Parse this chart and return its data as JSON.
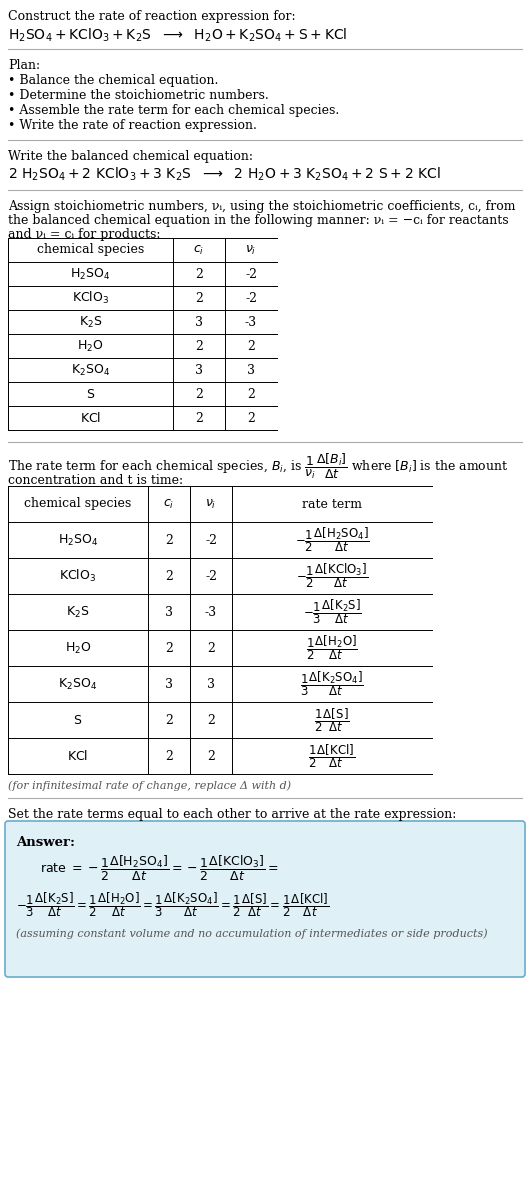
{
  "title_line1": "Construct the rate of reaction expression for:",
  "plan_header": "Plan:",
  "plan_items": [
    "• Balance the chemical equation.",
    "• Determine the stoichiometric numbers.",
    "• Assemble the rate term for each chemical species.",
    "• Write the rate of reaction expression."
  ],
  "balanced_header": "Write the balanced chemical equation:",
  "assign_text1": "Assign stoichiometric numbers, νᵢ, using the stoichiometric coefficients, cᵢ, from",
  "assign_text2": "the balanced chemical equation in the following manner: νᵢ = −cᵢ for reactants",
  "assign_text3": "and νᵢ = cᵢ for products:",
  "table1_data": [
    [
      "H_2SO_4",
      "2",
      "-2"
    ],
    [
      "KClO_3",
      "2",
      "-2"
    ],
    [
      "K_2S",
      "3",
      "-3"
    ],
    [
      "H_2O",
      "2",
      "2"
    ],
    [
      "K_2SO_4",
      "3",
      "3"
    ],
    [
      "S",
      "2",
      "2"
    ],
    [
      "KCl",
      "2",
      "2"
    ]
  ],
  "rate_term_text1": "The rate term for each chemical species, Bᵢ, is",
  "rate_term_text2": "concentration and t is time:",
  "infinitesimal_note": "(for infinitesimal rate of change, replace Δ with d)",
  "set_rate_text": "Set the rate terms equal to each other to arrive at the rate expression:",
  "answer_label": "Answer:",
  "assuming_note": "(assuming constant volume and no accumulation of intermediates or side products)",
  "answer_box_color": "#dff0f7",
  "answer_box_border": "#6aacca",
  "bg_color": "#ffffff",
  "separator_color": "#aaaaaa",
  "text_color": "#000000",
  "gray_color": "#555555"
}
